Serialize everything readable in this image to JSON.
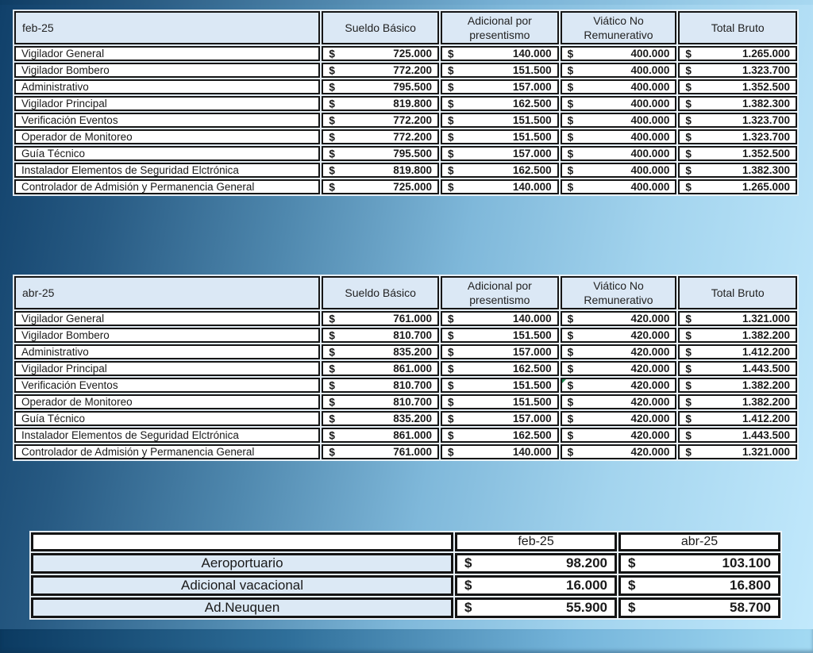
{
  "colors": {
    "background_dark": "#10406a",
    "background_light": "#c2e9fc",
    "header_fill": "#dbe8f5",
    "cell_fill": "#ffffff",
    "border": "#161616",
    "comment_marker_green": "#1e8c4f"
  },
  "salary_tables": [
    {
      "period": "feb-25",
      "currency_symbol": "$",
      "columns": [
        "Sueldo Básico",
        "Adicional por presentismo",
        "Viático No Remunerativo",
        "Total Bruto"
      ],
      "rows": [
        {
          "label": "Vigilador General",
          "values": [
            "725.000",
            "140.000",
            "400.000",
            "1.265.000"
          ]
        },
        {
          "label": "Vigilador Bombero",
          "values": [
            "772.200",
            "151.500",
            "400.000",
            "1.323.700"
          ]
        },
        {
          "label": "Administrativo",
          "values": [
            "795.500",
            "157.000",
            "400.000",
            "1.352.500"
          ]
        },
        {
          "label": "Vigilador Principal",
          "values": [
            "819.800",
            "162.500",
            "400.000",
            "1.382.300"
          ]
        },
        {
          "label": "Verificación Eventos",
          "values": [
            "772.200",
            "151.500",
            "400.000",
            "1.323.700"
          ]
        },
        {
          "label": "Operador de Monitoreo",
          "values": [
            "772.200",
            "151.500",
            "400.000",
            "1.323.700"
          ]
        },
        {
          "label": "Guía Técnico",
          "values": [
            "795.500",
            "157.000",
            "400.000",
            "1.352.500"
          ]
        },
        {
          "label": "Instalador Elementos de Seguridad Elctrónica",
          "values": [
            "819.800",
            "162.500",
            "400.000",
            "1.382.300"
          ]
        },
        {
          "label": "Controlador de Admisión y Permanencia General",
          "values": [
            "725.000",
            "140.000",
            "400.000",
            "1.265.000"
          ]
        }
      ]
    },
    {
      "period": "abr-25",
      "currency_symbol": "$",
      "columns": [
        "Sueldo Básico",
        "Adicional por presentismo",
        "Viático No Remunerativo",
        "Total Bruto"
      ],
      "comment_marker": {
        "row": 4,
        "col": 2
      },
      "rows": [
        {
          "label": "Vigilador General",
          "values": [
            "761.000",
            "140.000",
            "420.000",
            "1.321.000"
          ]
        },
        {
          "label": "Vigilador Bombero",
          "values": [
            "810.700",
            "151.500",
            "420.000",
            "1.382.200"
          ]
        },
        {
          "label": "Administrativo",
          "values": [
            "835.200",
            "157.000",
            "420.000",
            "1.412.200"
          ]
        },
        {
          "label": "Vigilador Principal",
          "values": [
            "861.000",
            "162.500",
            "420.000",
            "1.443.500"
          ]
        },
        {
          "label": "Verificación Eventos",
          "values": [
            "810.700",
            "151.500",
            "420.000",
            "1.382.200"
          ]
        },
        {
          "label": "Operador de Monitoreo",
          "values": [
            "810.700",
            "151.500",
            "420.000",
            "1.382.200"
          ]
        },
        {
          "label": "Guía Técnico",
          "values": [
            "835.200",
            "157.000",
            "420.000",
            "1.412.200"
          ]
        },
        {
          "label": "Instalador Elementos de Seguridad Elctrónica",
          "values": [
            "861.000",
            "162.500",
            "420.000",
            "1.443.500"
          ]
        },
        {
          "label": "Controlador de Admisión y Permanencia General",
          "values": [
            "761.000",
            "140.000",
            "420.000",
            "1.321.000"
          ]
        }
      ]
    }
  ],
  "adjustments_table": {
    "currency_symbol": "$",
    "corner_label": "",
    "columns": [
      "feb-25",
      "abr-25"
    ],
    "rows": [
      {
        "label": "Aeroportuario",
        "values": [
          "98.200",
          "103.100"
        ]
      },
      {
        "label": "Adicional vacacional",
        "values": [
          "16.000",
          "16.800"
        ]
      },
      {
        "label": "Ad.Neuquen",
        "values": [
          "55.900",
          "58.700"
        ]
      }
    ]
  }
}
